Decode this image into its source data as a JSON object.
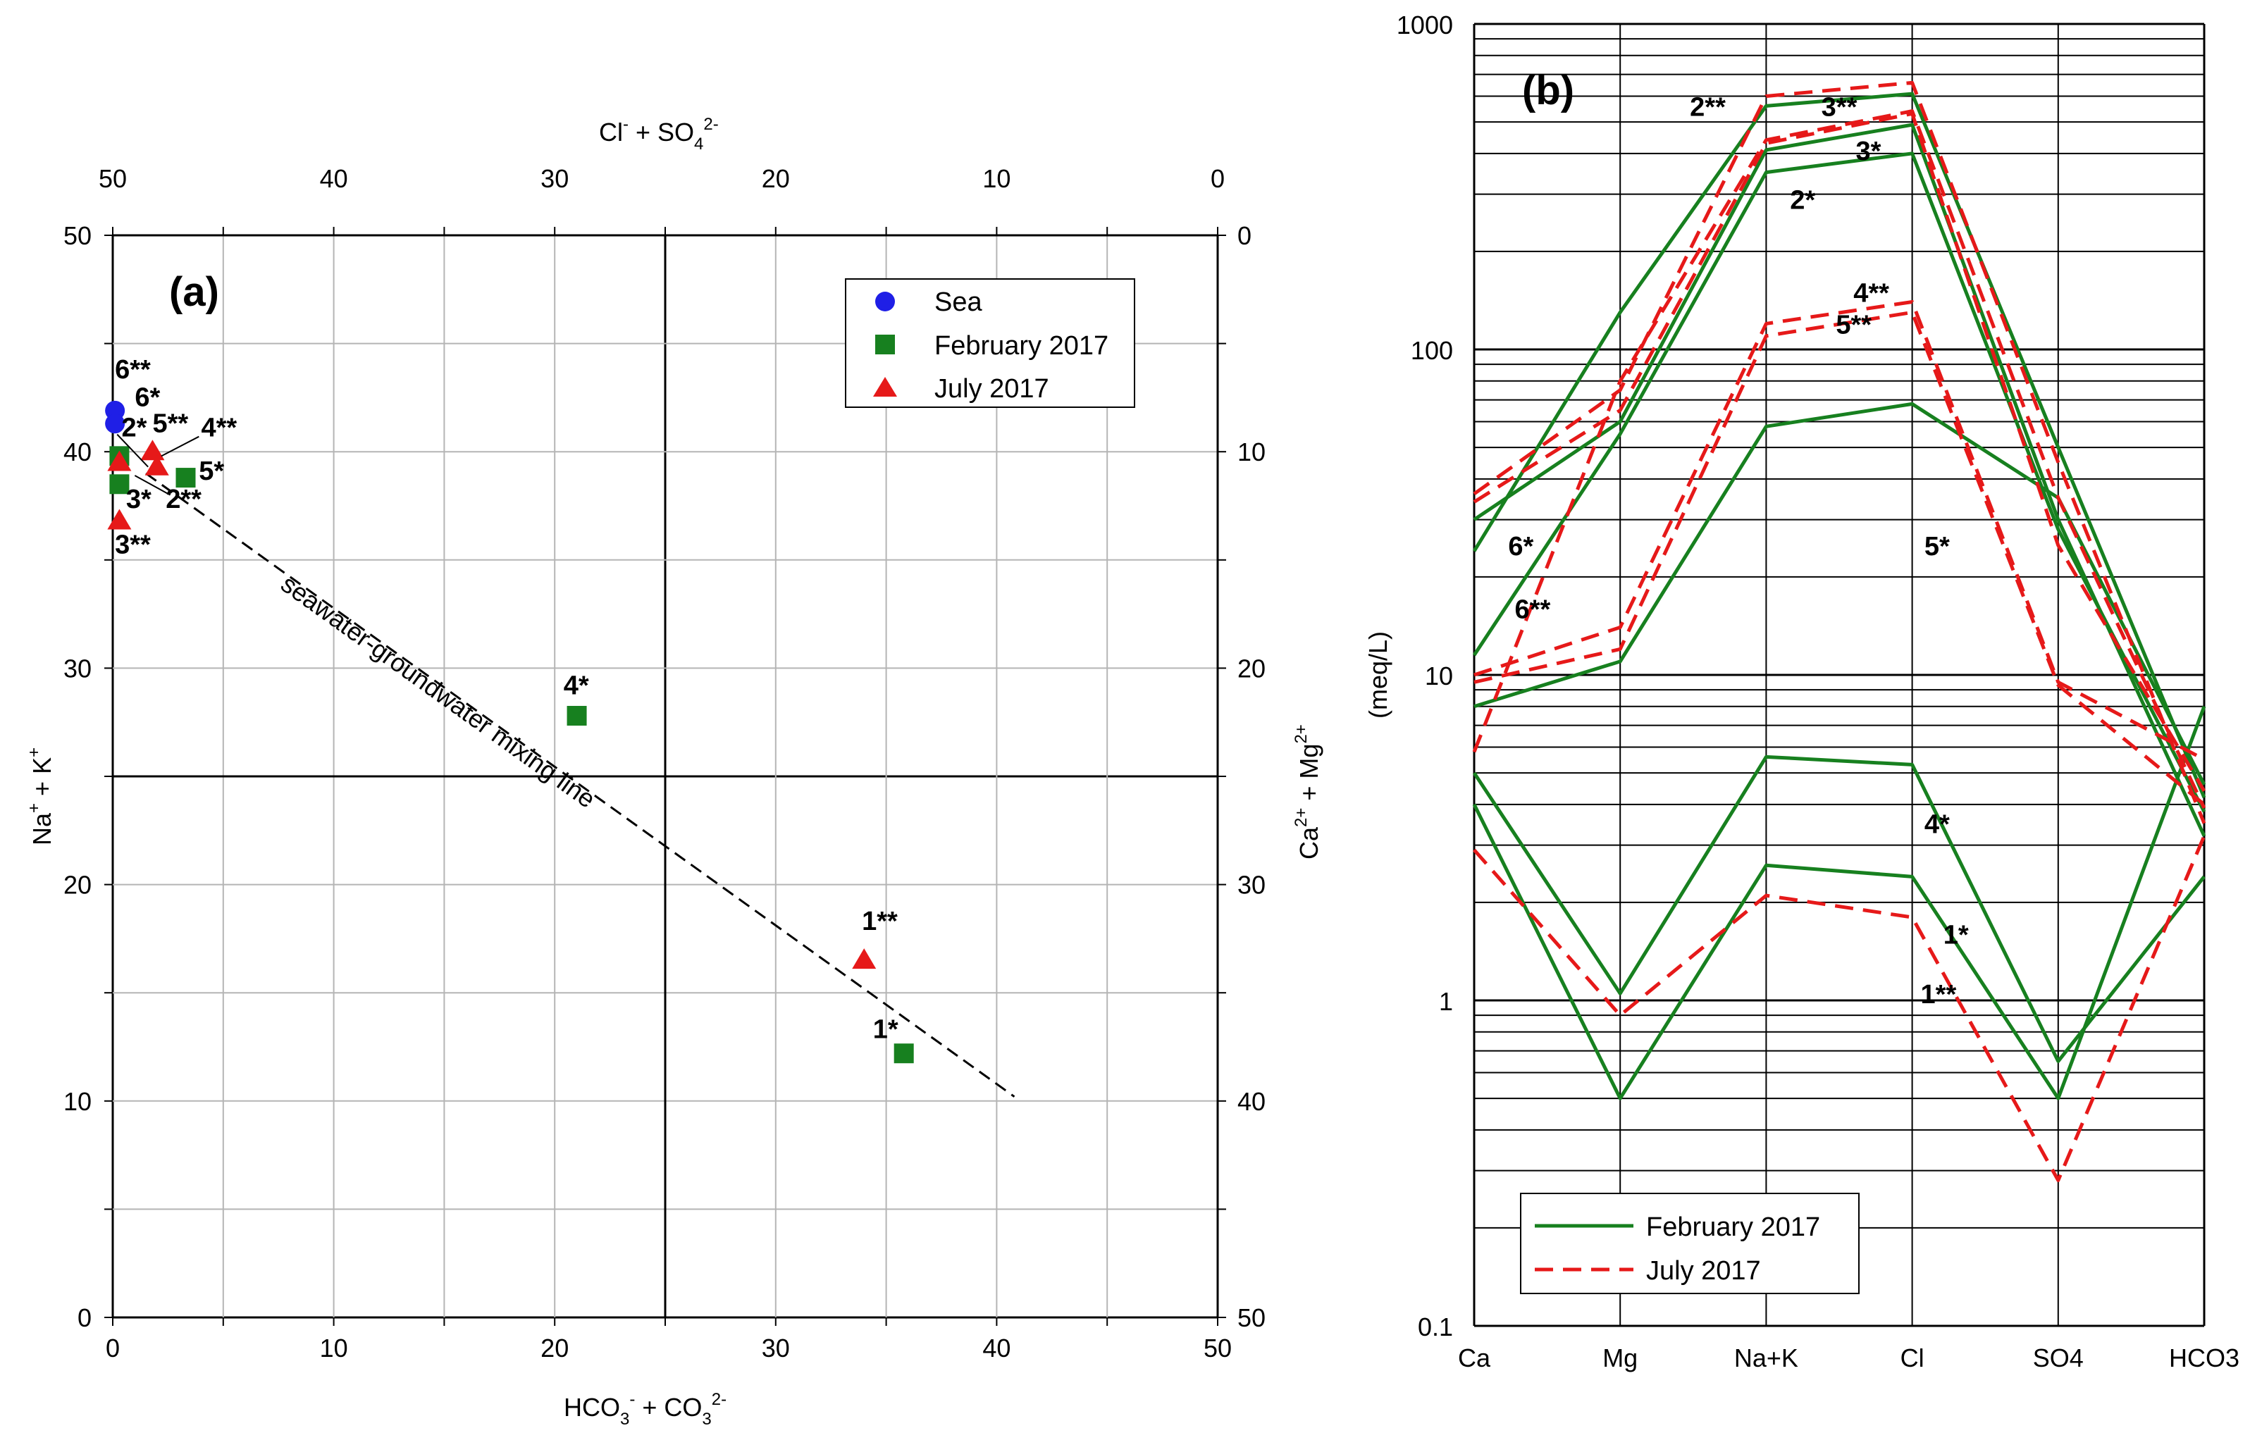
{
  "chart_data": [
    {
      "panel": "(a)",
      "type": "scatter",
      "xlabel": "HCO3- + CO3 2-",
      "ylabel": "Na+ + K+",
      "top_label": "Cl- + SO4 2-",
      "right_label": "Ca2+ + Mg2+",
      "xlim": [
        0,
        50
      ],
      "ylim": [
        0,
        50
      ],
      "x_ticks": [
        "0",
        "10",
        "20",
        "30",
        "40",
        "50"
      ],
      "y_ticks": [
        "0",
        "10",
        "20",
        "30",
        "40",
        "50"
      ],
      "top_ticks": [
        "50",
        "40",
        "30",
        "20",
        "10",
        "0"
      ],
      "right_ticks": [
        "0",
        "10",
        "20",
        "30",
        "40",
        "50"
      ],
      "legend": [
        "Sea",
        "February 2017",
        "July 2017"
      ],
      "series": [
        {
          "name": "Sea",
          "marker": "circle",
          "color": "#1f1fe6",
          "points": [
            {
              "x": 0.1,
              "y": 41.9
            },
            {
              "x": 0.1,
              "y": 41.3
            }
          ]
        },
        {
          "name": "February 2017",
          "marker": "square",
          "color": "#17801f",
          "points": [
            {
              "x": 0.3,
              "y": 39.8
            },
            {
              "x": 0.3,
              "y": 38.5
            },
            {
              "x": 3.3,
              "y": 38.8
            },
            {
              "x": 21.0,
              "y": 27.8
            },
            {
              "x": 35.8,
              "y": 12.2
            }
          ]
        },
        {
          "name": "July 2017",
          "marker": "triangle",
          "color": "#e61919",
          "points": [
            {
              "x": 0.3,
              "y": 39.5
            },
            {
              "x": 0.3,
              "y": 36.8
            },
            {
              "x": 1.8,
              "y": 40.0
            },
            {
              "x": 2.0,
              "y": 39.3
            },
            {
              "x": 34.0,
              "y": 16.5
            }
          ]
        }
      ],
      "labels": [
        {
          "text": "6**",
          "x": 0.1,
          "y": 43.4
        },
        {
          "text": "6*",
          "x": 1.0,
          "y": 42.1
        },
        {
          "text": "2*",
          "x": 0.4,
          "y": 40.7
        },
        {
          "text": "5**",
          "x": 1.8,
          "y": 40.9
        },
        {
          "text": "4**",
          "x": 4.0,
          "y": 40.7
        },
        {
          "text": "5*",
          "x": 3.9,
          "y": 38.7
        },
        {
          "text": "3*",
          "x": 0.6,
          "y": 37.4
        },
        {
          "text": "2**",
          "x": 2.4,
          "y": 37.4
        },
        {
          "text": "3**",
          "x": 0.1,
          "y": 35.3
        },
        {
          "text": "4*",
          "x": 20.4,
          "y": 28.8
        },
        {
          "text": "1**",
          "x": 33.9,
          "y": 17.9
        },
        {
          "text": "1*",
          "x": 34.4,
          "y": 12.9
        }
      ],
      "mixing_line": {
        "label": "seawater-groundwater mixing line",
        "from": {
          "x": 1.5,
          "y": 39.0
        },
        "to": {
          "x": 40.8,
          "y": 10.2
        }
      }
    },
    {
      "panel": "(b)",
      "type": "line",
      "ylabel": "(meq/L)",
      "yscale": "log",
      "ylim": [
        0.1,
        1000
      ],
      "y_ticks": [
        "0.1",
        "1",
        "10",
        "100",
        "1000"
      ],
      "categories": [
        "Ca",
        "Mg",
        "Na+K",
        "Cl",
        "SO4",
        "HCO3"
      ],
      "legend": [
        "February 2017",
        "July 2017"
      ],
      "series": [
        {
          "name": "2*",
          "group": "February 2017",
          "values": [
            30,
            60,
            410,
            490,
            30,
            3.2
          ]
        },
        {
          "name": "3*",
          "group": "February 2017",
          "values": [
            24,
            130,
            560,
            610,
            50,
            4.2
          ]
        },
        {
          "name": "6*",
          "group": "February 2017",
          "values": [
            11.5,
            55,
            350,
            400,
            28,
            3.8
          ]
        },
        {
          "name": "5*",
          "group": "February 2017",
          "values": [
            8,
            11,
            58,
            68,
            35,
            4.6
          ]
        },
        {
          "name": "4*",
          "group": "February 2017",
          "values": [
            5,
            1.05,
            5.6,
            5.3,
            0.65,
            2.4
          ]
        },
        {
          "name": "1*",
          "group": "February 2017",
          "values": [
            4,
            0.5,
            2.6,
            2.4,
            0.5,
            8
          ]
        },
        {
          "name": "2**",
          "group": "July 2017",
          "values": [
            34,
            65,
            430,
            530,
            25,
            4.4
          ]
        },
        {
          "name": "3**",
          "group": "July 2017",
          "values": [
            36,
            75,
            600,
            660,
            45,
            3.5
          ]
        },
        {
          "name": "4**",
          "group": "July 2017",
          "values": [
            10,
            14,
            120,
            140,
            9.5,
            5.5
          ]
        },
        {
          "name": "5**",
          "group": "July 2017",
          "values": [
            9.5,
            12,
            110,
            130,
            9.3,
            4
          ]
        },
        {
          "name": "6**",
          "group": "July 2017",
          "values": [
            5.8,
            80,
            440,
            540,
            35,
            3.9
          ]
        },
        {
          "name": "1**",
          "group": "July 2017",
          "values": [
            2.9,
            0.9,
            2.1,
            1.8,
            0.28,
            3.2
          ]
        }
      ],
      "labels": [
        {
          "text": "2**",
          "cat": 1.6,
          "y": 560
        },
        {
          "text": "3**",
          "cat": 2.5,
          "y": 560
        },
        {
          "text": "3*",
          "cat": 2.7,
          "y": 410
        },
        {
          "text": "2*",
          "cat": 2.25,
          "y": 290
        },
        {
          "text": "4**",
          "cat": 2.72,
          "y": 150
        },
        {
          "text": "5**",
          "cat": 2.6,
          "y": 120
        },
        {
          "text": "6*",
          "cat": 0.32,
          "y": 25
        },
        {
          "text": "6**",
          "cat": 0.4,
          "y": 16
        },
        {
          "text": "5*",
          "cat": 3.17,
          "y": 25
        },
        {
          "text": "4*",
          "cat": 3.17,
          "y": 3.5
        },
        {
          "text": "1*",
          "cat": 3.3,
          "y": 1.6
        },
        {
          "text": "1**",
          "cat": 3.18,
          "y": 1.05
        }
      ]
    }
  ]
}
